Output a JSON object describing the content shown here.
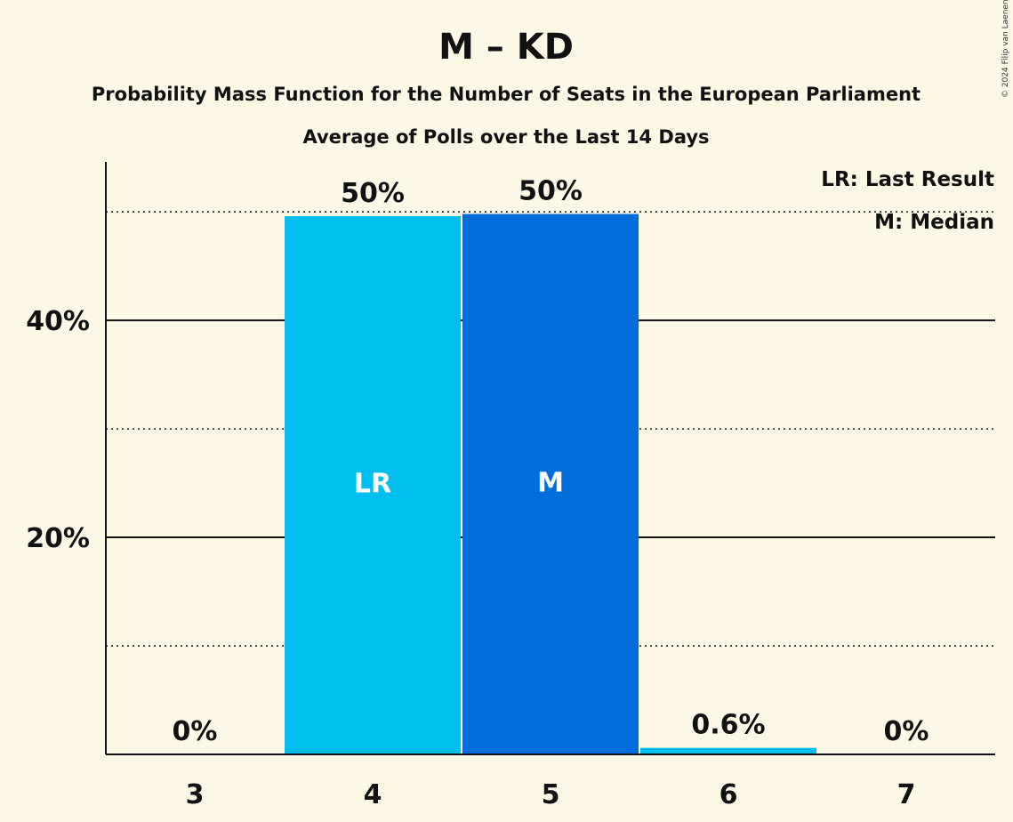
{
  "chart_data": {
    "type": "bar",
    "title": "M – KD",
    "subtitle": "Probability Mass Function for the Number of Seats in the European Parliament",
    "subtitle2": "Average of Polls over the Last 14 Days",
    "categories": [
      "3",
      "4",
      "5",
      "6",
      "7"
    ],
    "values": [
      0,
      49.6,
      49.8,
      0.6,
      0
    ],
    "value_labels": [
      "0%",
      "50%",
      "50%",
      "0.6%",
      "0%"
    ],
    "bar_labels": [
      "",
      "LR",
      "M",
      "",
      ""
    ],
    "bar_colors": [
      "#00bfef",
      "#00bfef",
      "#006ddb",
      "#00bfef",
      "#00bfef"
    ],
    "ylim": [
      0,
      54.6
    ],
    "yticks": [
      {
        "value": 20,
        "label": "20%"
      },
      {
        "value": 40,
        "label": "40%"
      }
    ],
    "minor_gridlines": [
      10,
      30,
      50
    ],
    "legend": [
      "LR: Last Result",
      "M: Median"
    ],
    "legend_position": "top-right"
  },
  "copyright": "© 2024 Filip van Laenen"
}
